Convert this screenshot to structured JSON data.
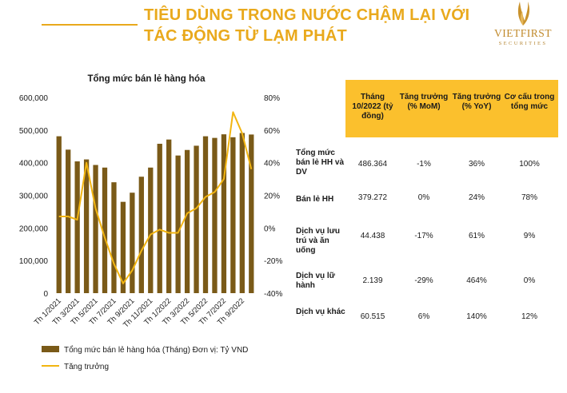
{
  "header": {
    "title_line1": "TIÊU DÙNG TRONG NƯỚC CHẬM LẠI VỚI",
    "title_line2": "TÁC ĐỘNG TỪ LẠM PHÁT",
    "logo_name": "VIETFIRST",
    "logo_sub": "SECURITIES"
  },
  "colors": {
    "accent": "#e9a91c",
    "bar": "#7a5a18",
    "line": "#f2b511",
    "table_header": "#fbc02d"
  },
  "chart_data": {
    "type": "bar",
    "title": "Tổng mức bán lẻ hàng hóa",
    "categories": [
      "Th 1/2021",
      "Th 2/2021",
      "Th 3/2021",
      "Th 4/2021",
      "Th 5/2021",
      "Th 6/2021",
      "Th 7/2021",
      "Th 8/2021",
      "Th 9/2021",
      "Th 10/2021",
      "Th 11/2021",
      "Th 12/2021",
      "Th 1/2022",
      "Th 2/2022",
      "Th 3/2022",
      "Th 4/2022",
      "Th 5/2022",
      "Th 6/2022",
      "Th 7/2022",
      "Th 8/2022",
      "Th 9/2022",
      "Th 10/2022"
    ],
    "x_tick_labels": [
      "Th 1/2021",
      "Th 3/2021",
      "Th 5/2021",
      "Th 7/2021",
      "Th 9/2021",
      "Th 11/2021",
      "Th 1/2022",
      "Th 3/2022",
      "Th 5/2022",
      "Th 7/2022",
      "Th 9/2022"
    ],
    "series": [
      {
        "name": "Tổng mức bán lẻ hàng hóa (Tháng) Đơn vị: Tỷ VND",
        "type": "bar",
        "axis": "left",
        "values": [
          481000,
          440000,
          404000,
          410000,
          393000,
          385000,
          340000,
          280000,
          308000,
          357000,
          385000,
          458000,
          471000,
          422000,
          439000,
          452000,
          481000,
          476000,
          487000,
          478000,
          491000,
          486364
        ]
      },
      {
        "name": "Tăng trưởng",
        "type": "line",
        "axis": "right",
        "values": [
          7,
          7,
          5,
          40,
          12,
          -6,
          -22,
          -34,
          -26,
          -14,
          -4,
          -1,
          -3,
          -3,
          9,
          12,
          19,
          22,
          30,
          71,
          58,
          36
        ]
      }
    ],
    "y_left": {
      "ticks": [
        "0",
        "100,000",
        "200,000",
        "300,000",
        "400,000",
        "500,000",
        "600,000"
      ],
      "min": 0,
      "max": 600000
    },
    "y_right": {
      "ticks": [
        "-40%",
        "-20%",
        "0%",
        "20%",
        "40%",
        "60%",
        "80%"
      ],
      "min": -40,
      "max": 80
    }
  },
  "table": {
    "headers": [
      "Tháng 10/2022 (tỷ đồng)",
      "Tăng trưởng (% MoM)",
      "Tăng trưởng (% YoY)",
      "Cơ cấu trong tổng mức"
    ],
    "rows": [
      {
        "label": "Tổng mức bán lẻ HH và DV",
        "cells": [
          "486.364",
          "-1%",
          "36%",
          "100%"
        ]
      },
      {
        "label": "Bán lẻ HH",
        "cells": [
          "379.272",
          "0%",
          "24%",
          "78%"
        ]
      },
      {
        "label": "Dịch vụ lưu trú và ăn uống",
        "cells": [
          "44.438",
          "-17%",
          "61%",
          "9%"
        ]
      },
      {
        "label": "Dịch vụ lữ hành",
        "cells": [
          "2.139",
          "-29%",
          "464%",
          "0%"
        ]
      },
      {
        "label": "Dịch vụ khác",
        "cells": [
          "60.515",
          "6%",
          "140%",
          "12%"
        ]
      }
    ]
  }
}
